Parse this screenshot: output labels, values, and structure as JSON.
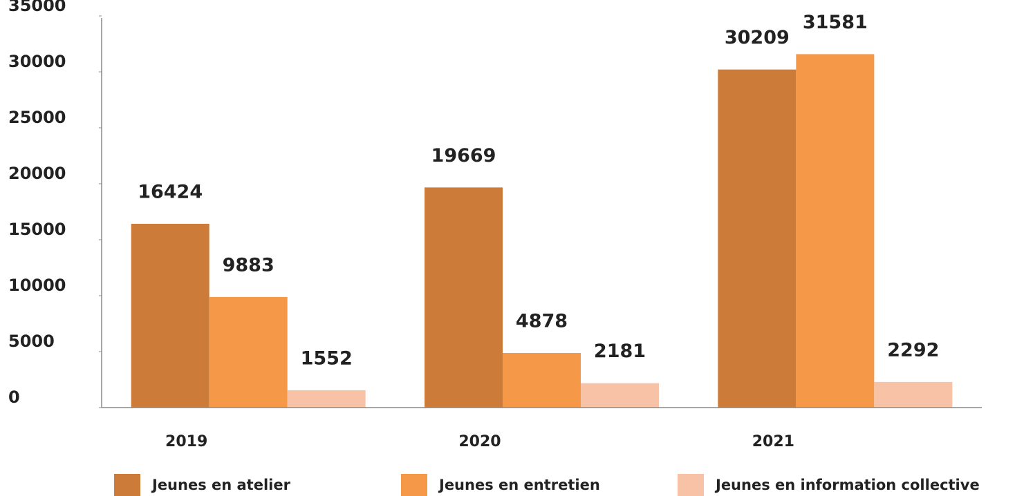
{
  "chart_data": {
    "type": "bar",
    "categories": [
      "2019",
      "2020",
      "2021"
    ],
    "series": [
      {
        "name": "Jeunes en atelier",
        "color": "#cd7b38",
        "values": [
          16424,
          19669,
          30209
        ]
      },
      {
        "name": "Jeunes en entretien",
        "color": "#f59847",
        "values": [
          9883,
          4878,
          31581
        ]
      },
      {
        "name": "Jeunes en information collective",
        "color": "#f8c2a6",
        "values": [
          1552,
          2181,
          2292
        ]
      }
    ],
    "ylim": [
      0,
      35000
    ],
    "yticks": [
      0,
      5000,
      10000,
      15000,
      20000,
      25000,
      30000,
      35000
    ],
    "grid": false,
    "legend": "bottom"
  }
}
